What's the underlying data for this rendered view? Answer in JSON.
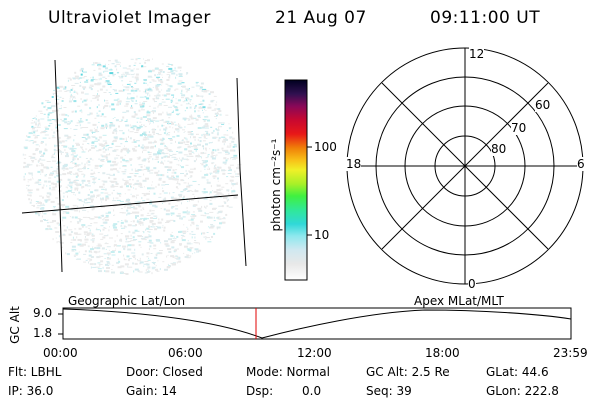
{
  "header": {
    "instrument": "Ultraviolet Imager",
    "date": "21 Aug 07",
    "time": "09:11:00 UT"
  },
  "colorbar": {
    "unit_label": "photon cm⁻²s⁻¹",
    "ticks": [
      "100",
      "10"
    ],
    "colors": [
      "#ffffff",
      "#e8e8e8",
      "#d0e8f0",
      "#8ee8ee",
      "#30d8d8",
      "#30e898",
      "#40f040",
      "#a8f028",
      "#f0f028",
      "#f8c018",
      "#f08008",
      "#e81818",
      "#c80830",
      "#880858",
      "#301050",
      "#000020"
    ]
  },
  "polar_plot": {
    "mlt_labels": {
      "top": "12",
      "left": "18",
      "right": "6",
      "bottom": "0"
    },
    "lat_labels": [
      "60",
      "70",
      "80"
    ]
  },
  "timeline": {
    "left_label": "Geographic Lat/Lon",
    "right_label": "Apex MLat/MLT",
    "ylabel": "GC Alt",
    "yticks": [
      "9.0",
      "1.8"
    ],
    "xticks": [
      "00:00",
      "06:00",
      "12:00",
      "18:00",
      "23:59"
    ],
    "current_marker_color": "#e00000"
  },
  "meta": {
    "flt": "Flt: LBHL",
    "ip": "IP: 36.0",
    "door": "Door: Closed",
    "gain": "Gain: 14",
    "mode": "Mode: Normal",
    "dsp_label": "Dsp:",
    "dsp_value": "0.0",
    "gc_alt": "GC Alt: 2.5 Re",
    "seq": "Seq: 39",
    "glat": "GLat:  44.6",
    "glon": "GLon: 222.8"
  }
}
